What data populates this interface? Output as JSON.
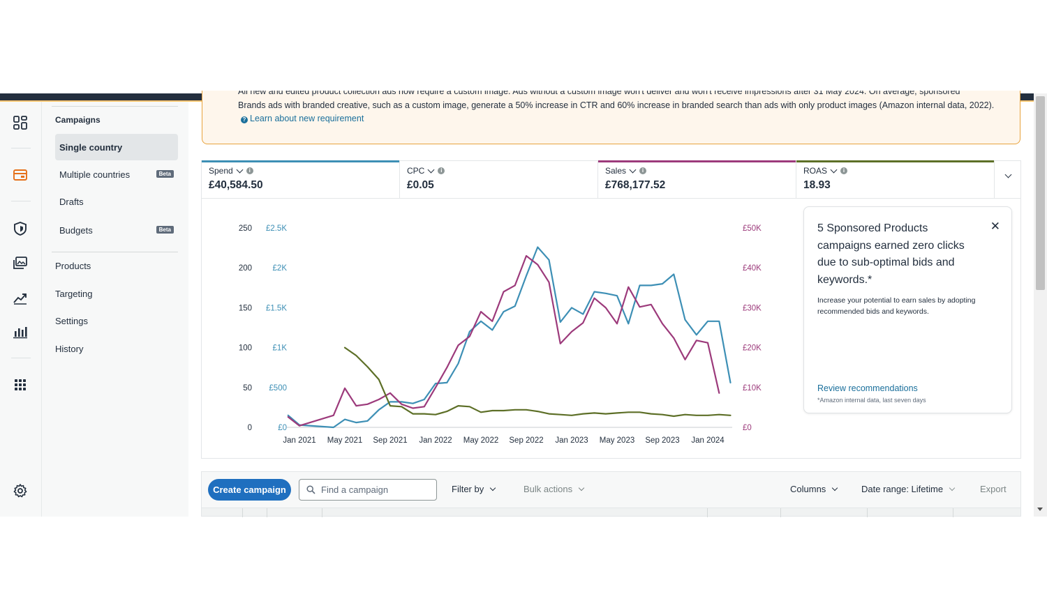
{
  "banner": {
    "clipped_text": "All new and edited product collection ads now require a custom image. Ads without a custom image won't deliver and won't receive impressions after 31 May 2024. On average, sponsored",
    "text": "Brands ads with branded creative, such as a custom image, generate a 50% increase in CTR and 60% increase in branded search than ads with only product images (Amazon internal data, 2022).",
    "link": "Learn about new requirement"
  },
  "rail": {
    "icons": [
      "dashboard-icon",
      "campaign-icon",
      "shield-icon",
      "media-icon",
      "trend-icon",
      "bar-chart-icon",
      "apps-grid-icon",
      "settings-gear-icon"
    ]
  },
  "sidenav": {
    "heading": "Campaigns",
    "items": [
      {
        "label": "Single country",
        "active": true
      },
      {
        "label": "Multiple countries",
        "badge": "Beta"
      },
      {
        "label": "Drafts"
      },
      {
        "label": "Budgets",
        "badge": "Beta"
      }
    ],
    "secondary": [
      "Products",
      "Targeting",
      "Settings",
      "History"
    ]
  },
  "metrics": [
    {
      "label": "Spend",
      "value": "£40,584.50",
      "color": "#3d8fb5"
    },
    {
      "label": "CPC",
      "value": "£0.05",
      "color": ""
    },
    {
      "label": "Sales",
      "value": "£768,177.52",
      "color": "#9c3a7b"
    },
    {
      "label": "ROAS",
      "value": "18.93",
      "color": "#5d6f27"
    }
  ],
  "recommendation": {
    "title": "5 Sponsored Products campaigns earned zero clicks due to sub-optimal bids and keywords.*",
    "description": "Increase your potential to earn sales by adopting recommended bids and keywords.",
    "link": "Review recommendations",
    "footnote": "*Amazon internal data, last seven days"
  },
  "toolbar": {
    "create": "Create campaign",
    "search_placeholder": "Find a campaign",
    "filter": "Filter by",
    "bulk": "Bulk actions",
    "columns": "Columns",
    "date_range": "Date range: Lifetime",
    "export": "Export"
  },
  "chart_data": {
    "type": "line",
    "x_ticks": [
      "Jan 2021",
      "May 2021",
      "Sep 2021",
      "Jan 2022",
      "May 2022",
      "Sep 2022",
      "Jan 2023",
      "May 2023",
      "Sep 2023",
      "Jan 2024"
    ],
    "left_axis_roas": {
      "ticks": [
        "250",
        "200",
        "150",
        "100",
        "50",
        "0"
      ],
      "ylim": [
        0,
        250
      ]
    },
    "left_axis_spend": {
      "ticks": [
        "£2.5K",
        "£2K",
        "£1.5K",
        "£1K",
        "£500",
        "£0"
      ],
      "ylim": [
        0,
        2500
      ]
    },
    "right_axis_sales": {
      "ticks": [
        "£50K",
        "£40K",
        "£30K",
        "£20K",
        "£10K",
        "£0"
      ],
      "ylim": [
        0,
        50000
      ]
    },
    "series": [
      {
        "name": "Spend",
        "color": "#3d8fb5",
        "axis": "spend",
        "points": [
          [
            "2020-12",
            150
          ],
          [
            "2021-01",
            30
          ],
          [
            "2021-04",
            0
          ],
          [
            "2021-05",
            100
          ],
          [
            "2021-06",
            60
          ],
          [
            "2021-07",
            80
          ],
          [
            "2021-08",
            220
          ],
          [
            "2021-09",
            320
          ],
          [
            "2021-10",
            320
          ],
          [
            "2021-11",
            300
          ],
          [
            "2021-12",
            350
          ],
          [
            "2022-01",
            550
          ],
          [
            "2022-02",
            560
          ],
          [
            "2022-03",
            800
          ],
          [
            "2022-04",
            1200
          ],
          [
            "2022-05",
            1330
          ],
          [
            "2022-06",
            1220
          ],
          [
            "2022-07",
            1450
          ],
          [
            "2022-08",
            1520
          ],
          [
            "2022-09",
            1900
          ],
          [
            "2022-10",
            2260
          ],
          [
            "2022-11",
            2100
          ],
          [
            "2022-12",
            1320
          ],
          [
            "2023-01",
            1500
          ],
          [
            "2023-02",
            1420
          ],
          [
            "2023-03",
            1700
          ],
          [
            "2023-04",
            1680
          ],
          [
            "2023-05",
            1650
          ],
          [
            "2023-06",
            1300
          ],
          [
            "2023-07",
            1780
          ],
          [
            "2023-08",
            1780
          ],
          [
            "2023-09",
            1800
          ],
          [
            "2023-10",
            1920
          ],
          [
            "2023-11",
            1350
          ],
          [
            "2023-12",
            1160
          ],
          [
            "2024-01",
            1330
          ],
          [
            "2024-02",
            1330
          ],
          [
            "2024-03",
            560
          ]
        ]
      },
      {
        "name": "Sales",
        "color": "#9c3a7b",
        "axis": "sales",
        "points": [
          [
            "2020-12",
            2600
          ],
          [
            "2021-01",
            400
          ],
          [
            "2021-04",
            3000
          ],
          [
            "2021-05",
            9800
          ],
          [
            "2021-06",
            5400
          ],
          [
            "2021-07",
            5800
          ],
          [
            "2021-08",
            7000
          ],
          [
            "2021-09",
            8600
          ],
          [
            "2021-10",
            5800
          ],
          [
            "2021-11",
            4800
          ],
          [
            "2021-12",
            5200
          ],
          [
            "2022-01",
            10000
          ],
          [
            "2022-02",
            15000
          ],
          [
            "2022-03",
            20600
          ],
          [
            "2022-04",
            22800
          ],
          [
            "2022-05",
            29000
          ],
          [
            "2022-06",
            26600
          ],
          [
            "2022-07",
            34000
          ],
          [
            "2022-08",
            35600
          ],
          [
            "2022-09",
            43000
          ],
          [
            "2022-10",
            40800
          ],
          [
            "2022-11",
            36400
          ],
          [
            "2022-12",
            21000
          ],
          [
            "2023-01",
            24000
          ],
          [
            "2023-02",
            26200
          ],
          [
            "2023-03",
            32400
          ],
          [
            "2023-04",
            30000
          ],
          [
            "2023-05",
            26000
          ],
          [
            "2023-06",
            35200
          ],
          [
            "2023-07",
            30200
          ],
          [
            "2023-08",
            30800
          ],
          [
            "2023-09",
            26000
          ],
          [
            "2023-10",
            22400
          ],
          [
            "2023-11",
            17000
          ],
          [
            "2023-12",
            21800
          ],
          [
            "2024-01",
            21200
          ],
          [
            "2024-02",
            8600
          ]
        ]
      },
      {
        "name": "ROAS",
        "color": "#5d6f27",
        "axis": "roas",
        "points": [
          [
            "2021-05",
            100
          ],
          [
            "2021-06",
            90
          ],
          [
            "2021-07",
            76
          ],
          [
            "2021-08",
            60
          ],
          [
            "2021-09",
            27
          ],
          [
            "2021-10",
            26
          ],
          [
            "2021-11",
            17
          ],
          [
            "2021-12",
            17
          ],
          [
            "2022-01",
            16
          ],
          [
            "2022-02",
            20
          ],
          [
            "2022-03",
            27
          ],
          [
            "2022-04",
            26
          ],
          [
            "2022-05",
            19
          ],
          [
            "2022-06",
            21
          ],
          [
            "2022-07",
            21
          ],
          [
            "2022-08",
            22
          ],
          [
            "2022-09",
            22
          ],
          [
            "2022-10",
            20
          ],
          [
            "2022-11",
            17
          ],
          [
            "2022-12",
            16
          ],
          [
            "2023-01",
            15
          ],
          [
            "2023-02",
            17
          ],
          [
            "2023-03",
            18
          ],
          [
            "2023-04",
            17
          ],
          [
            "2023-05",
            18
          ],
          [
            "2023-06",
            19
          ],
          [
            "2023-07",
            19
          ],
          [
            "2023-08",
            17
          ],
          [
            "2023-09",
            16
          ],
          [
            "2023-10",
            14
          ],
          [
            "2023-11",
            16
          ],
          [
            "2023-12",
            15
          ],
          [
            "2024-01",
            15
          ],
          [
            "2024-02",
            16
          ],
          [
            "2024-03",
            15
          ]
        ]
      }
    ]
  }
}
